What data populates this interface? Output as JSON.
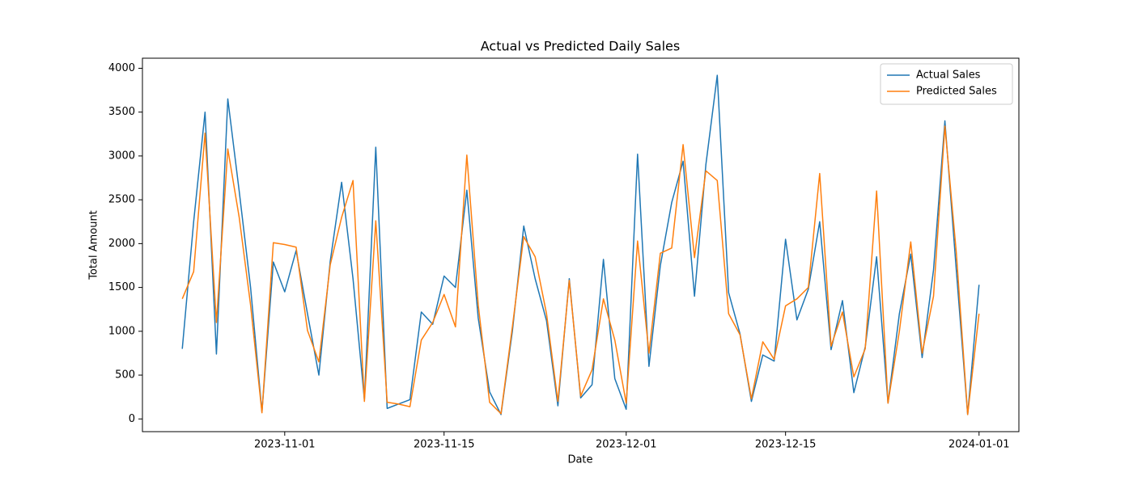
{
  "chart_data": {
    "type": "line",
    "title": "Actual vs Predicted Daily Sales",
    "xlabel": "Date",
    "ylabel": "Total Amount",
    "x": [
      "2023-10-23",
      "2023-10-24",
      "2023-10-25",
      "2023-10-26",
      "2023-10-27",
      "2023-10-28",
      "2023-10-29",
      "2023-10-30",
      "2023-10-31",
      "2023-11-01",
      "2023-11-02",
      "2023-11-03",
      "2023-11-04",
      "2023-11-05",
      "2023-11-06",
      "2023-11-07",
      "2023-11-08",
      "2023-11-09",
      "2023-11-10",
      "2023-11-11",
      "2023-11-12",
      "2023-11-13",
      "2023-11-14",
      "2023-11-15",
      "2023-11-16",
      "2023-11-17",
      "2023-11-18",
      "2023-11-19",
      "2023-11-20",
      "2023-11-21",
      "2023-11-22",
      "2023-11-23",
      "2023-11-24",
      "2023-11-25",
      "2023-11-26",
      "2023-11-27",
      "2023-11-28",
      "2023-11-29",
      "2023-11-30",
      "2023-12-01",
      "2023-12-02",
      "2023-12-03",
      "2023-12-04",
      "2023-12-05",
      "2023-12-06",
      "2023-12-07",
      "2023-12-08",
      "2023-12-09",
      "2023-12-10",
      "2023-12-11",
      "2023-12-12",
      "2023-12-13",
      "2023-12-14",
      "2023-12-15",
      "2023-12-16",
      "2023-12-17",
      "2023-12-18",
      "2023-12-19",
      "2023-12-20",
      "2023-12-21",
      "2023-12-22",
      "2023-12-23",
      "2023-12-24",
      "2023-12-25",
      "2023-12-26",
      "2023-12-27",
      "2023-12-28",
      "2023-12-29",
      "2023-12-30",
      "2023-12-31",
      "2024-01-01"
    ],
    "series": [
      {
        "name": "Actual Sales",
        "color": "#1f77b4",
        "values": [
          800,
          2250,
          3500,
          740,
          3650,
          2600,
          1500,
          80,
          1790,
          1450,
          1920,
          1200,
          500,
          1800,
          2700,
          1600,
          220,
          3100,
          120,
          170,
          220,
          1220,
          1080,
          1630,
          1500,
          2610,
          1150,
          310,
          50,
          1000,
          2200,
          1600,
          1120,
          150,
          1600,
          240,
          390,
          1820,
          460,
          110,
          3020,
          600,
          1750,
          2470,
          2940,
          1400,
          2900,
          3920,
          1440,
          970,
          200,
          730,
          660,
          2050,
          1130,
          1480,
          2250,
          790,
          1350,
          300,
          820,
          1850,
          180,
          1200,
          1880,
          700,
          1700,
          3400,
          1700,
          50,
          1530
        ]
      },
      {
        "name": "Predicted Sales",
        "color": "#ff7f0e",
        "values": [
          1370,
          1680,
          3260,
          1100,
          3080,
          2300,
          1300,
          70,
          2010,
          1990,
          1960,
          1010,
          650,
          1760,
          2300,
          2720,
          200,
          2260,
          190,
          170,
          140,
          900,
          1100,
          1420,
          1050,
          3010,
          1300,
          190,
          60,
          1050,
          2080,
          1850,
          1200,
          200,
          1580,
          260,
          560,
          1370,
          900,
          180,
          2030,
          750,
          1890,
          1950,
          3130,
          1840,
          2830,
          2720,
          1200,
          960,
          230,
          880,
          680,
          1290,
          1370,
          1500,
          2800,
          830,
          1220,
          480,
          800,
          2600,
          180,
          1000,
          2020,
          750,
          1400,
          3340,
          1900,
          50,
          1200
        ]
      }
    ],
    "xlim": [
      "2023-10-19T12:00",
      "2024-01-04T12:00"
    ],
    "xticks": [
      "2023-11-01",
      "2023-11-15",
      "2023-12-01",
      "2023-12-15",
      "2024-01-01"
    ],
    "ylim": [
      -145,
      4115
    ],
    "yticks": [
      0,
      500,
      1000,
      1500,
      2000,
      2500,
      3000,
      3500,
      4000
    ],
    "legend": "upper right",
    "grid": false
  }
}
